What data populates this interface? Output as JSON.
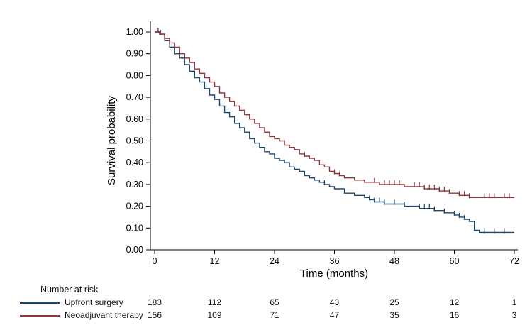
{
  "chart_data": {
    "type": "line",
    "subtype": "kaplan-meier-step",
    "title": "",
    "xlabel": "Time (months)",
    "ylabel": "Survival probability",
    "xlim": [
      0,
      72
    ],
    "ylim": [
      0,
      1
    ],
    "x_ticks": [
      0,
      12,
      24,
      36,
      48,
      60,
      72
    ],
    "y_tick_values": [
      0,
      0.1,
      0.2,
      0.3,
      0.4,
      0.5,
      0.6,
      0.7,
      0.8,
      0.9,
      1.0
    ],
    "y_tick_labels": [
      "0.00",
      "0.10",
      "0.20",
      "0.30",
      "0.40",
      "0.50",
      "0.60",
      "0.70",
      "0.80",
      "0.90",
      "1.00"
    ],
    "grid": false,
    "legend_position": "below-as-risk-table",
    "series": [
      {
        "name": "Upfront surgery",
        "color": "#1a476f",
        "points": [
          [
            0,
            1.0
          ],
          [
            1,
            0.99
          ],
          [
            2,
            0.96
          ],
          [
            3,
            0.93
          ],
          [
            4,
            0.9
          ],
          [
            5,
            0.88
          ],
          [
            6,
            0.85
          ],
          [
            7,
            0.82
          ],
          [
            8,
            0.79
          ],
          [
            9,
            0.77
          ],
          [
            10,
            0.74
          ],
          [
            11,
            0.71
          ],
          [
            12,
            0.69
          ],
          [
            13,
            0.66
          ],
          [
            14,
            0.63
          ],
          [
            15,
            0.61
          ],
          [
            16,
            0.58
          ],
          [
            17,
            0.56
          ],
          [
            18,
            0.54
          ],
          [
            19,
            0.51
          ],
          [
            20,
            0.49
          ],
          [
            21,
            0.47
          ],
          [
            22,
            0.45
          ],
          [
            23,
            0.44
          ],
          [
            24,
            0.42
          ],
          [
            25,
            0.41
          ],
          [
            26,
            0.4
          ],
          [
            27,
            0.38
          ],
          [
            28,
            0.37
          ],
          [
            29,
            0.36
          ],
          [
            30,
            0.34
          ],
          [
            31,
            0.33
          ],
          [
            32,
            0.32
          ],
          [
            33,
            0.31
          ],
          [
            34,
            0.3
          ],
          [
            35,
            0.29
          ],
          [
            36,
            0.28
          ],
          [
            38,
            0.26
          ],
          [
            40,
            0.25
          ],
          [
            42,
            0.24
          ],
          [
            43,
            0.23
          ],
          [
            44,
            0.22
          ],
          [
            46,
            0.21
          ],
          [
            50,
            0.2
          ],
          [
            53,
            0.19
          ],
          [
            56,
            0.18
          ],
          [
            58,
            0.17
          ],
          [
            60,
            0.16
          ],
          [
            61,
            0.15
          ],
          [
            62,
            0.14
          ],
          [
            63,
            0.13
          ],
          [
            64,
            0.09
          ],
          [
            65,
            0.08
          ],
          [
            72,
            0.08
          ]
        ],
        "censor_marks": [
          [
            0.7,
            1.0
          ],
          [
            34,
            0.3
          ],
          [
            43,
            0.23
          ],
          [
            44,
            0.22
          ],
          [
            45,
            0.22
          ],
          [
            46,
            0.21
          ],
          [
            48,
            0.21
          ],
          [
            50,
            0.2
          ],
          [
            53,
            0.19
          ],
          [
            54,
            0.19
          ],
          [
            55,
            0.19
          ],
          [
            56,
            0.18
          ],
          [
            58,
            0.17
          ],
          [
            60,
            0.16
          ],
          [
            61,
            0.15
          ],
          [
            62,
            0.14
          ],
          [
            66,
            0.08
          ],
          [
            68,
            0.08
          ],
          [
            70,
            0.08
          ]
        ]
      },
      {
        "name": "Neoadjuvant therapy",
        "color": "#90353b",
        "points": [
          [
            0,
            1.0
          ],
          [
            1,
            0.99
          ],
          [
            2,
            0.97
          ],
          [
            3,
            0.95
          ],
          [
            4,
            0.93
          ],
          [
            5,
            0.9
          ],
          [
            6,
            0.88
          ],
          [
            7,
            0.86
          ],
          [
            8,
            0.83
          ],
          [
            9,
            0.81
          ],
          [
            10,
            0.79
          ],
          [
            11,
            0.77
          ],
          [
            12,
            0.75
          ],
          [
            13,
            0.72
          ],
          [
            14,
            0.7
          ],
          [
            15,
            0.68
          ],
          [
            16,
            0.66
          ],
          [
            17,
            0.64
          ],
          [
            18,
            0.62
          ],
          [
            19,
            0.6
          ],
          [
            20,
            0.58
          ],
          [
            21,
            0.56
          ],
          [
            22,
            0.54
          ],
          [
            23,
            0.52
          ],
          [
            24,
            0.51
          ],
          [
            25,
            0.5
          ],
          [
            26,
            0.48
          ],
          [
            27,
            0.47
          ],
          [
            28,
            0.46
          ],
          [
            29,
            0.44
          ],
          [
            30,
            0.43
          ],
          [
            31,
            0.42
          ],
          [
            32,
            0.41
          ],
          [
            33,
            0.39
          ],
          [
            34,
            0.38
          ],
          [
            35,
            0.36
          ],
          [
            36,
            0.35
          ],
          [
            37,
            0.34
          ],
          [
            38,
            0.33
          ],
          [
            40,
            0.32
          ],
          [
            42,
            0.31
          ],
          [
            45,
            0.3
          ],
          [
            50,
            0.29
          ],
          [
            54,
            0.28
          ],
          [
            57,
            0.27
          ],
          [
            59,
            0.26
          ],
          [
            61,
            0.25
          ],
          [
            63,
            0.24
          ],
          [
            72,
            0.24
          ]
        ],
        "censor_marks": [
          [
            0.5,
            1.0
          ],
          [
            1.2,
            0.99
          ],
          [
            30,
            0.43
          ],
          [
            36,
            0.35
          ],
          [
            37,
            0.34
          ],
          [
            44,
            0.31
          ],
          [
            46,
            0.3
          ],
          [
            47,
            0.3
          ],
          [
            48,
            0.3
          ],
          [
            49,
            0.3
          ],
          [
            52,
            0.29
          ],
          [
            53,
            0.29
          ],
          [
            54,
            0.28
          ],
          [
            55,
            0.28
          ],
          [
            56,
            0.28
          ],
          [
            57,
            0.27
          ],
          [
            58,
            0.27
          ],
          [
            59,
            0.26
          ],
          [
            61,
            0.25
          ],
          [
            62,
            0.25
          ],
          [
            63,
            0.24
          ],
          [
            66,
            0.24
          ],
          [
            67,
            0.24
          ],
          [
            68,
            0.24
          ],
          [
            70,
            0.24
          ],
          [
            71,
            0.24
          ]
        ]
      }
    ]
  },
  "risk_table": {
    "title": "Number at risk",
    "time_points": [
      0,
      12,
      24,
      36,
      48,
      60,
      72
    ],
    "rows": [
      {
        "label": "Upfront surgery",
        "color": "#1a476f",
        "values": [
          183,
          112,
          65,
          43,
          25,
          12,
          1
        ]
      },
      {
        "label": "Neoadjuvant therapy",
        "color": "#90353b",
        "values": [
          156,
          109,
          71,
          47,
          35,
          16,
          3
        ]
      }
    ]
  }
}
